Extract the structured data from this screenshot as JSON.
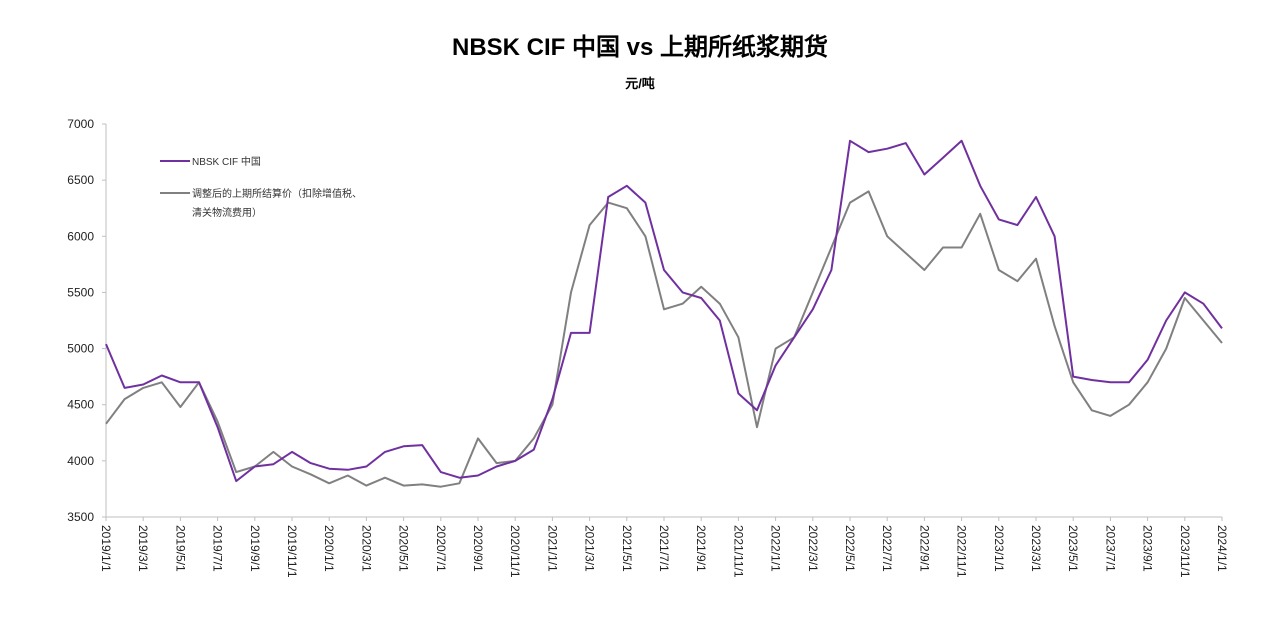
{
  "chart_data": {
    "type": "line",
    "title": "NBSK CIF 中国 vs 上期所纸浆期货",
    "ylabel": "元/吨",
    "xlabel": "",
    "ylim": [
      3500,
      7000
    ],
    "yticks": [
      3500,
      4000,
      4500,
      5000,
      5500,
      6000,
      6500,
      7000
    ],
    "xticks": [
      "2019/1/1",
      "2019/3/1",
      "2019/5/1",
      "2019/7/1",
      "2019/9/1",
      "2019/11/1",
      "2020/1/1",
      "2020/3/1",
      "2020/5/1",
      "2020/7/1",
      "2020/9/1",
      "2020/11/1",
      "2021/1/1",
      "2021/3/1",
      "2021/5/1",
      "2021/7/1",
      "2021/9/1",
      "2021/11/1",
      "2022/1/1",
      "2022/3/1",
      "2022/5/1",
      "2022/7/1",
      "2022/9/1",
      "2022/11/1",
      "2023/1/1",
      "2023/3/1",
      "2023/5/1",
      "2023/7/1",
      "2023/9/1",
      "2023/11/1",
      "2024/1/1"
    ],
    "x_note": "monthly points, index 0 = 2019/1 ... 60 = 2024/1",
    "grid": false,
    "legend_position": "top-left",
    "series": [
      {
        "name": "NBSK CIF 中国",
        "color": "#7030A0",
        "values": [
          5040,
          4650,
          4680,
          4760,
          4700,
          4700,
          4300,
          3820,
          3950,
          3970,
          4080,
          3980,
          3930,
          3920,
          3950,
          4080,
          4130,
          4140,
          3900,
          3850,
          3870,
          3950,
          4000,
          4100,
          4550,
          5140,
          5140,
          6350,
          6450,
          6300,
          5700,
          5500,
          5450,
          5250,
          4600,
          4450,
          4850,
          5100,
          5350,
          5700,
          6850,
          6750,
          6780,
          6830,
          6550,
          6700,
          6850,
          6450,
          6150,
          6100,
          6350,
          6000,
          4750,
          4720,
          4700,
          4700,
          4900,
          5250,
          5500,
          5400,
          5180
        ]
      },
      {
        "name": "调整后的上期所结算价（扣除增值税、清关物流费用）",
        "legend_lines": [
          "调整后的上期所结算价（扣除增值税、",
          "清关物流费用）"
        ],
        "color": "#808080",
        "values": [
          4330,
          4550,
          4650,
          4700,
          4480,
          4700,
          4350,
          3900,
          3950,
          4080,
          3950,
          3880,
          3800,
          3870,
          3780,
          3850,
          3780,
          3790,
          3770,
          3800,
          4200,
          3980,
          4000,
          4200,
          4500,
          5500,
          6100,
          6300,
          6250,
          6000,
          5350,
          5400,
          5550,
          5400,
          5100,
          4300,
          5000,
          5100,
          5500,
          5900,
          6300,
          6400,
          6000,
          5850,
          5700,
          5900,
          5900,
          6200,
          5700,
          5600,
          5800,
          5200,
          4700,
          4450,
          4400,
          4500,
          4700,
          5000,
          5450,
          5250,
          5050
        ]
      }
    ]
  }
}
